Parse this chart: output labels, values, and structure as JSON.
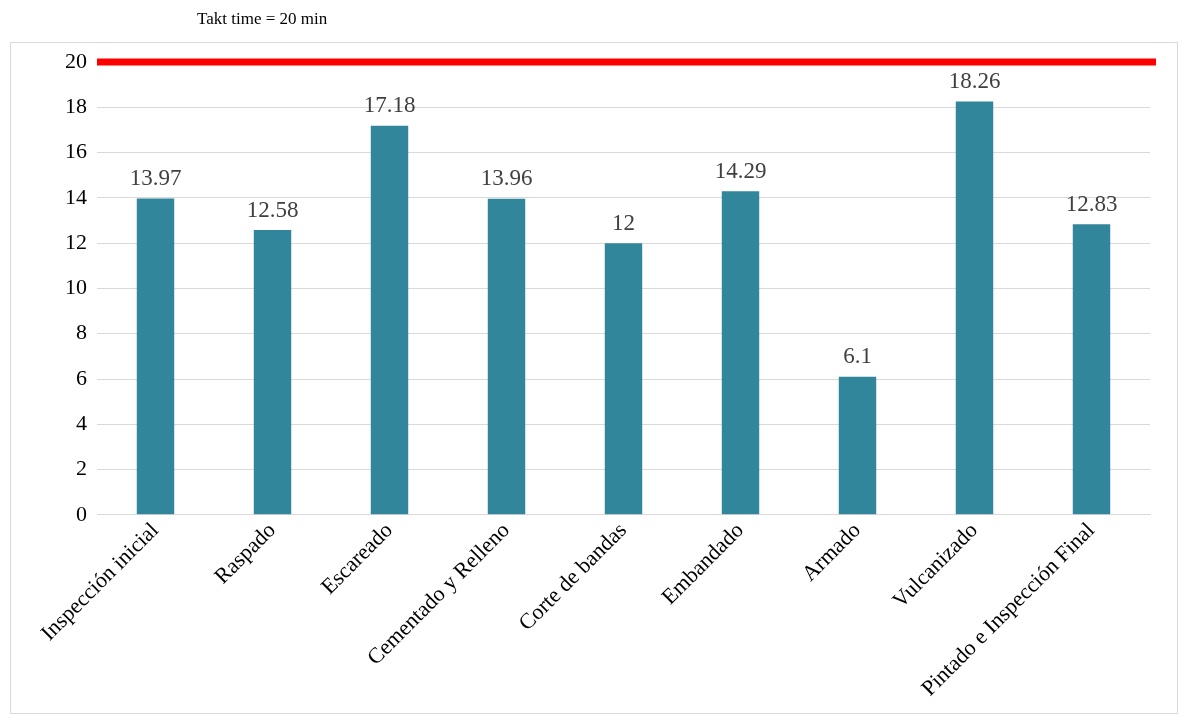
{
  "chart_data": {
    "type": "bar",
    "categories": [
      "Inspección inicial",
      "Raspado",
      "Escareado",
      "Cementado y Relleno",
      "Corte de bandas",
      "Embandado",
      "Armado",
      "Vulcanizado",
      "Pintado e Inspección Final"
    ],
    "values": [
      13.97,
      12.58,
      17.18,
      13.96,
      12,
      14.29,
      6.1,
      18.26,
      12.83
    ],
    "color": "#31869b",
    "ylim": [
      0,
      20
    ],
    "yticks": [
      0,
      2,
      4,
      6,
      8,
      10,
      12,
      14,
      16,
      18,
      20
    ],
    "grid": "y",
    "legend": false,
    "data_labels": true,
    "ref_lines": [
      {
        "axis": "y",
        "value": 20,
        "label": "Takt time = 20 min",
        "color": "#ff0000"
      }
    ]
  }
}
